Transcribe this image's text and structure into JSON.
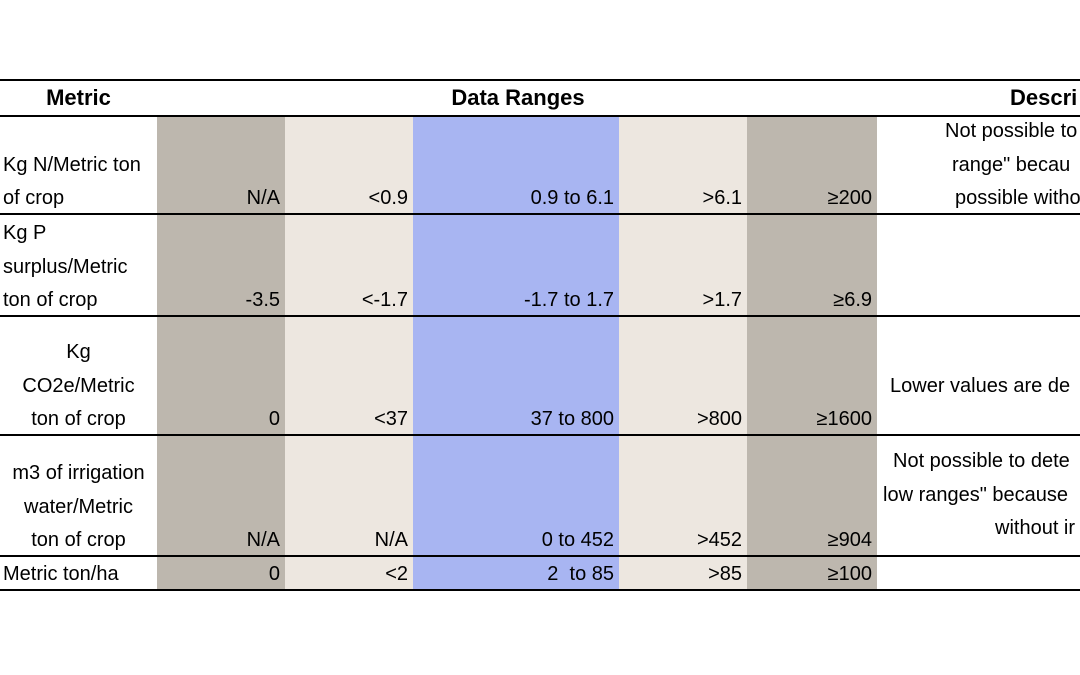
{
  "header": {
    "metric": "Metric",
    "data_ranges": "Data Ranges",
    "description": "Descri"
  },
  "table": {
    "rows": [
      {
        "metric": [
          "Kg N/Metric ton",
          "of crop"
        ],
        "ranges": [
          "N/A",
          "<0.9",
          "0.9 to 6.1",
          ">6.1",
          "≥200"
        ],
        "description": [
          "Not possible to",
          "range\" becau",
          "possible witho"
        ]
      },
      {
        "metric": [
          "Kg P",
          "surplus/Metric",
          "ton of crop"
        ],
        "ranges": [
          "-3.5",
          "<-1.7",
          "-1.7 to 1.7",
          ">1.7",
          "≥6.9"
        ],
        "description": []
      },
      {
        "metric": [
          "Kg",
          "CO2e/Metric",
          "ton of crop"
        ],
        "ranges": [
          "0",
          "<37",
          "37 to 800",
          ">800",
          "≥1600"
        ],
        "description": [
          "Lower values are de"
        ]
      },
      {
        "metric": [
          "m3 of irrigation",
          "water/Metric",
          "ton of crop"
        ],
        "ranges": [
          "N/A",
          "N/A",
          "0 to 452",
          ">452",
          "≥904"
        ],
        "description": [
          "Not possible to dete",
          "low ranges\" because",
          "without ir"
        ]
      },
      {
        "metric": [
          "Metric ton/ha"
        ],
        "ranges": [
          "0",
          "<2",
          "2  to 85",
          ">85",
          "≥100"
        ],
        "description": []
      }
    ]
  }
}
